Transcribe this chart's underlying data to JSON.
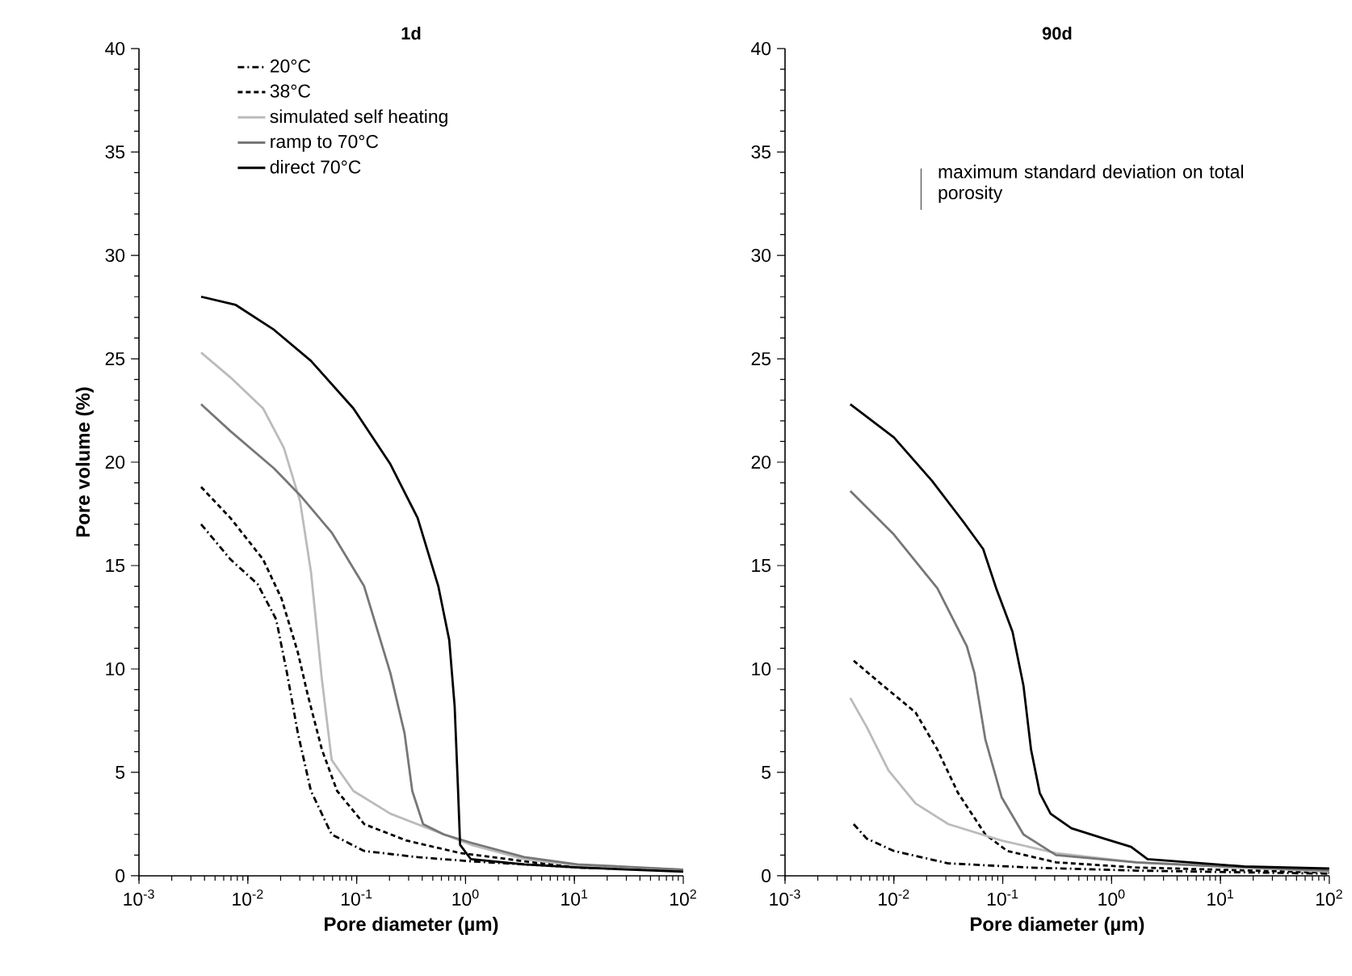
{
  "chart_data": [
    {
      "type": "line",
      "title": "1d",
      "xlabel": "Pore diameter (µm)",
      "ylabel": "Pore volume (%)",
      "log": "x",
      "xlim": [
        0.001,
        100
      ],
      "xticks": [
        {
          "value": 0.001,
          "label": "10$^{-3}$"
        },
        {
          "value": 0.01,
          "label": "10$^{-2}$"
        },
        {
          "value": 0.1,
          "label": "10$^{-1}$"
        },
        {
          "value": 1,
          "label": "10$^{0}$"
        },
        {
          "value": 10,
          "label": "10$^{1}$"
        },
        {
          "value": 100,
          "label": "10$^{2}$"
        }
      ],
      "ylim": [
        0,
        40
      ],
      "yticks": [
        0,
        5,
        10,
        15,
        20,
        25,
        30,
        35,
        40
      ],
      "legend": "top left",
      "series": [
        {
          "name": "20°C",
          "color": "#000000",
          "line_style": "dashdot",
          "x": [
            0.00372,
            0.00692,
            0.0123,
            0.0182,
            0.0229,
            0.0288,
            0.038,
            0.0589,
            0.117,
            0.363,
            1.12,
            10.7,
            100
          ],
          "values": [
            17.0,
            15.3,
            14.1,
            12.4,
            9.8,
            6.9,
            4.1,
            2.0,
            1.2,
            0.9,
            0.7,
            0.4,
            0.25
          ]
        },
        {
          "name": "38°C",
          "color": "#000000",
          "line_style": "dashed",
          "x": [
            0.00372,
            0.00692,
            0.0138,
            0.0204,
            0.0288,
            0.0355,
            0.0479,
            0.0661,
            0.117,
            0.288,
            0.891,
            3.47,
            10.7,
            100
          ],
          "values": [
            18.8,
            17.3,
            15.3,
            13.4,
            10.8,
            8.75,
            6.1,
            4.1,
            2.5,
            1.7,
            1.1,
            0.7,
            0.4,
            0.25
          ]
        },
        {
          "name": "simulated self heating",
          "color": "#bbbbbb",
          "line_style": "solid",
          "x": [
            0.00372,
            0.00692,
            0.0138,
            0.0214,
            0.0302,
            0.038,
            0.0479,
            0.0589,
            0.0933,
            0.204,
            0.631,
            1.12,
            3.47,
            10.7,
            100
          ],
          "values": [
            25.3,
            24.1,
            22.6,
            20.7,
            18.1,
            14.7,
            9.5,
            5.6,
            4.1,
            3.0,
            2.0,
            1.5,
            0.8,
            0.5,
            0.3
          ]
        },
        {
          "name": "ramp to 70°C",
          "color": "#777777",
          "line_style": "solid",
          "x": [
            0.00372,
            0.00692,
            0.0174,
            0.0302,
            0.0589,
            0.117,
            0.204,
            0.275,
            0.324,
            0.407,
            0.631,
            1.12,
            3.47,
            10.7,
            100
          ],
          "values": [
            22.8,
            21.5,
            19.7,
            18.4,
            16.6,
            14.0,
            9.8,
            6.9,
            4.1,
            2.5,
            2.0,
            1.6,
            0.9,
            0.55,
            0.3
          ]
        },
        {
          "name": "direct 70°C",
          "color": "#000000",
          "line_style": "solid",
          "x": [
            0.00372,
            0.00776,
            0.0174,
            0.038,
            0.0933,
            0.204,
            0.363,
            0.562,
            0.708,
            0.794,
            0.851,
            0.891,
            1.12,
            3.47,
            10.7,
            100
          ],
          "values": [
            28.0,
            27.6,
            26.4,
            24.9,
            22.6,
            19.9,
            17.3,
            14.0,
            11.4,
            8.2,
            4.3,
            1.5,
            0.8,
            0.55,
            0.4,
            0.2
          ]
        }
      ]
    },
    {
      "type": "line",
      "title": "90d",
      "xlabel": "Pore diameter (µm)",
      "log": "x",
      "xlim": [
        0.001,
        100
      ],
      "xticks": [
        {
          "value": 0.001,
          "label": "10$^{-3}$"
        },
        {
          "value": 0.01,
          "label": "10$^{-2}$"
        },
        {
          "value": 0.1,
          "label": "10$^{-1}$"
        },
        {
          "value": 1,
          "label": "10$^{0}$"
        },
        {
          "value": 10,
          "label": "10$^{1}$"
        },
        {
          "value": 100,
          "label": "10$^{2}$"
        }
      ],
      "ylim": [
        0,
        40
      ],
      "yticks": [
        0,
        5,
        10,
        15,
        20,
        25,
        30,
        35,
        40
      ],
      "annotations": [
        "maximum standard deviation on total porosity"
      ],
      "series": [
        {
          "color": "#000000",
          "line_style": "dashdot",
          "x": [
            0.00427,
            0.00562,
            0.01,
            0.0316,
            0.174,
            1.7,
            100
          ],
          "values": [
            2.5,
            1.8,
            1.2,
            0.6,
            0.4,
            0.25,
            0.1
          ]
        },
        {
          "color": "#000000",
          "line_style": "dashed",
          "x": [
            0.00427,
            0.00794,
            0.0158,
            0.0251,
            0.0389,
            0.0692,
            0.11,
            0.309,
            1.7,
            100
          ],
          "values": [
            10.4,
            9.2,
            7.9,
            6.1,
            4.0,
            2.0,
            1.2,
            0.65,
            0.4,
            0.15
          ]
        },
        {
          "color": "#bbbbbb",
          "line_style": "solid",
          "x": [
            0.00398,
            0.00562,
            0.00891,
            0.0158,
            0.0316,
            0.0977,
            0.309,
            1.7,
            16.6,
            100
          ],
          "values": [
            8.6,
            7.2,
            5.1,
            3.5,
            2.5,
            1.7,
            1.1,
            0.65,
            0.4,
            0.2
          ]
        },
        {
          "color": "#777777",
          "line_style": "solid",
          "x": [
            0.00398,
            0.01,
            0.0251,
            0.0468,
            0.055,
            0.0692,
            0.0977,
            0.155,
            0.309,
            1.7,
            16.6,
            100
          ],
          "values": [
            18.6,
            16.5,
            13.9,
            11.1,
            9.8,
            6.6,
            3.8,
            2.0,
            1.0,
            0.65,
            0.4,
            0.25
          ]
        },
        {
          "color": "#000000",
          "line_style": "solid",
          "x": [
            0.00398,
            0.01,
            0.0224,
            0.0437,
            0.0661,
            0.0871,
            0.123,
            0.155,
            0.182,
            0.219,
            0.275,
            0.427,
            0.851,
            1.51,
            2.14,
            5.25,
            16.6,
            100
          ],
          "values": [
            22.8,
            21.2,
            19.1,
            17.1,
            15.8,
            13.9,
            11.8,
            9.2,
            6.1,
            4.0,
            3.0,
            2.3,
            1.8,
            1.4,
            0.8,
            0.65,
            0.45,
            0.35
          ]
        }
      ]
    }
  ]
}
